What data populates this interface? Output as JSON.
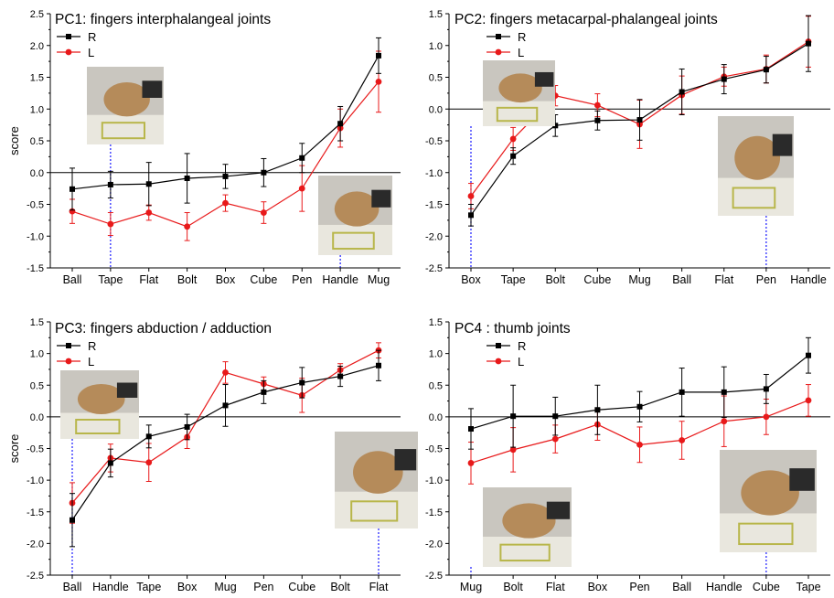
{
  "chart_data": [
    {
      "type": "line",
      "title": "PC1: fingers interphalangeal joints",
      "ylabel": "score",
      "ylim": [
        -1.5,
        2.5
      ],
      "yticks": [
        -1.5,
        -1.0,
        -0.5,
        0.0,
        0.5,
        1.0,
        1.5,
        2.0,
        2.5
      ],
      "ytick_labels": [
        "-1.5",
        "-1.0",
        "-0.5",
        "0.0",
        "0.5",
        "1.0",
        "1.5",
        "2.0",
        "2.5"
      ],
      "categories": [
        "Ball",
        "Tape",
        "Flat",
        "Bolt",
        "Box",
        "Cube",
        "Pen",
        "Handle",
        "Mug"
      ],
      "legend": "top-left",
      "series": [
        {
          "name": "R",
          "color": "#000000",
          "marker": "square",
          "values": [
            -0.26,
            -0.19,
            -0.18,
            -0.09,
            -0.06,
            0.0,
            0.23,
            0.77,
            1.84
          ],
          "errors": [
            0.33,
            0.21,
            0.34,
            0.39,
            0.19,
            0.22,
            0.23,
            0.27,
            0.28
          ]
        },
        {
          "name": "L",
          "color": "#e8191a",
          "marker": "circle",
          "values": [
            -0.61,
            -0.81,
            -0.63,
            -0.85,
            -0.48,
            -0.63,
            -0.25,
            0.7,
            1.43
          ],
          "errors": [
            0.19,
            0.18,
            0.12,
            0.22,
            0.13,
            0.17,
            0.36,
            0.3,
            0.48
          ]
        }
      ],
      "photo_label_categories": [
        "Tape",
        "Handle"
      ]
    },
    {
      "type": "line",
      "title": "PC2: fingers metacarpal-phalangeal joints",
      "ylabel": "",
      "ylim": [
        -2.5,
        1.5
      ],
      "yticks": [
        -2.5,
        -2.0,
        -1.5,
        -1.0,
        -0.5,
        0.0,
        0.5,
        1.0,
        1.5
      ],
      "ytick_labels": [
        "-2.5",
        "-2.0",
        "-1.5",
        "-1.0",
        "-0.5",
        "0.0",
        "0.5",
        "1.0",
        "1.5"
      ],
      "categories": [
        "Box",
        "Tape",
        "Bolt",
        "Cube",
        "Mug",
        "Ball",
        "Flat",
        "Pen",
        "Handle"
      ],
      "legend": "top-left",
      "series": [
        {
          "name": "R",
          "color": "#000000",
          "marker": "square",
          "values": [
            -1.67,
            -0.74,
            -0.26,
            -0.18,
            -0.17,
            0.27,
            0.47,
            0.62,
            1.03
          ],
          "errors": [
            0.17,
            0.13,
            0.17,
            0.15,
            0.32,
            0.36,
            0.23,
            0.21,
            0.44
          ]
        },
        {
          "name": "L",
          "color": "#e8191a",
          "marker": "circle",
          "values": [
            -1.37,
            -0.47,
            0.21,
            0.06,
            -0.24,
            0.22,
            0.51,
            0.63,
            1.06
          ],
          "errors": [
            0.2,
            0.18,
            0.16,
            0.18,
            0.38,
            0.3,
            0.15,
            0.22,
            0.4
          ]
        }
      ],
      "photo_label_categories": [
        "Box",
        "Pen"
      ]
    },
    {
      "type": "line",
      "title": "PC3: fingers abduction / adduction",
      "ylabel": "score",
      "ylim": [
        -2.5,
        1.5
      ],
      "yticks": [
        -2.5,
        -2.0,
        -1.5,
        -1.0,
        -0.5,
        0.0,
        0.5,
        1.0,
        1.5
      ],
      "ytick_labels": [
        "-2.5",
        "-2.0",
        "-1.5",
        "-1.0",
        "-0.5",
        "0.0",
        "0.5",
        "1.0",
        "1.5"
      ],
      "categories": [
        "Ball",
        "Handle",
        "Tape",
        "Box",
        "Mug",
        "Pen",
        "Cube",
        "Bolt",
        "Flat"
      ],
      "legend": "top-left",
      "series": [
        {
          "name": "R",
          "color": "#000000",
          "marker": "square",
          "values": [
            -1.63,
            -0.73,
            -0.31,
            -0.16,
            0.18,
            0.39,
            0.54,
            0.64,
            0.81
          ],
          "errors": [
            0.42,
            0.22,
            0.18,
            0.2,
            0.33,
            0.18,
            0.24,
            0.16,
            0.24
          ]
        },
        {
          "name": "L",
          "color": "#e8191a",
          "marker": "circle",
          "values": [
            -1.36,
            -0.65,
            -0.72,
            -0.32,
            0.7,
            0.52,
            0.34,
            0.74,
            1.05
          ],
          "errors": [
            0.32,
            0.22,
            0.3,
            0.18,
            0.17,
            0.11,
            0.27,
            0.1,
            0.12
          ]
        }
      ],
      "photo_label_categories": [
        "Ball",
        "Flat"
      ]
    },
    {
      "type": "line",
      "title": "PC4 : thumb joints",
      "ylabel": "",
      "ylim": [
        -2.5,
        1.5
      ],
      "yticks": [
        -2.5,
        -2.0,
        -1.5,
        -1.0,
        -0.5,
        0.0,
        0.5,
        1.0,
        1.5
      ],
      "ytick_labels": [
        "-2.5",
        "-2.0",
        "-1.5",
        "-1.0",
        "-0.5",
        "0.0",
        "0.5",
        "1.0",
        "1.5"
      ],
      "categories": [
        "Mug",
        "Bolt",
        "Flat",
        "Box",
        "Pen",
        "Ball",
        "Handle",
        "Cube",
        "Tape"
      ],
      "legend": "top-left",
      "series": [
        {
          "name": "R",
          "color": "#000000",
          "marker": "square",
          "values": [
            -0.19,
            0.01,
            0.01,
            0.11,
            0.16,
            0.39,
            0.39,
            0.44,
            0.97
          ],
          "errors": [
            0.32,
            0.49,
            0.3,
            0.39,
            0.24,
            0.38,
            0.4,
            0.23,
            0.28
          ]
        },
        {
          "name": "L",
          "color": "#e8191a",
          "marker": "circle",
          "values": [
            -0.73,
            -0.52,
            -0.35,
            -0.12,
            -0.44,
            -0.37,
            -0.07,
            0.0,
            0.26
          ],
          "errors": [
            0.33,
            0.35,
            0.22,
            0.25,
            0.28,
            0.3,
            0.4,
            0.28,
            0.25
          ]
        }
      ],
      "photo_label_categories": [
        "Mug",
        "Cube"
      ]
    }
  ]
}
